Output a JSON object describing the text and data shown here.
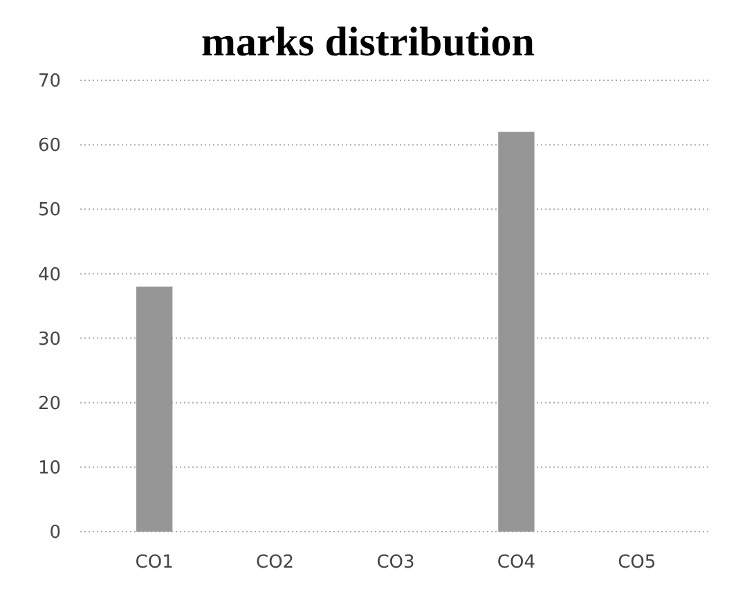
{
  "chart_data": {
    "type": "bar",
    "title": "marks distribution",
    "categories": [
      "CO1",
      "CO2",
      "CO3",
      "CO4",
      "CO5"
    ],
    "values": [
      38,
      0,
      0,
      62,
      0
    ],
    "color": "#969696",
    "ylim": [
      0,
      70
    ],
    "yticks": [
      0,
      10,
      20,
      30,
      40,
      50,
      60,
      70
    ],
    "grid": "y"
  }
}
